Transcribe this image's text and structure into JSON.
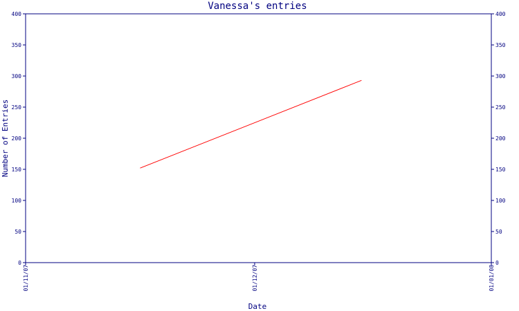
{
  "chart_data": {
    "type": "line",
    "title": "Vanessa's entries",
    "xlabel": "Date",
    "ylabel": "Number of Entries",
    "x_ticks": [
      "01/11/07",
      "01/12/07",
      "01/01/08"
    ],
    "x_range": [
      "01/11/07",
      "01/01/08"
    ],
    "ylim": [
      0,
      400
    ],
    "y_ticks": [
      0,
      50,
      100,
      150,
      200,
      250,
      300,
      350,
      400
    ],
    "right_axis_mirrored": true,
    "grid": false,
    "legend": "none",
    "line_color": "#ff0000",
    "axis_color": "#000080",
    "series": [
      {
        "x": [
          "16/11/07",
          "15/12/07"
        ],
        "values": [
          152,
          293
        ]
      }
    ]
  }
}
